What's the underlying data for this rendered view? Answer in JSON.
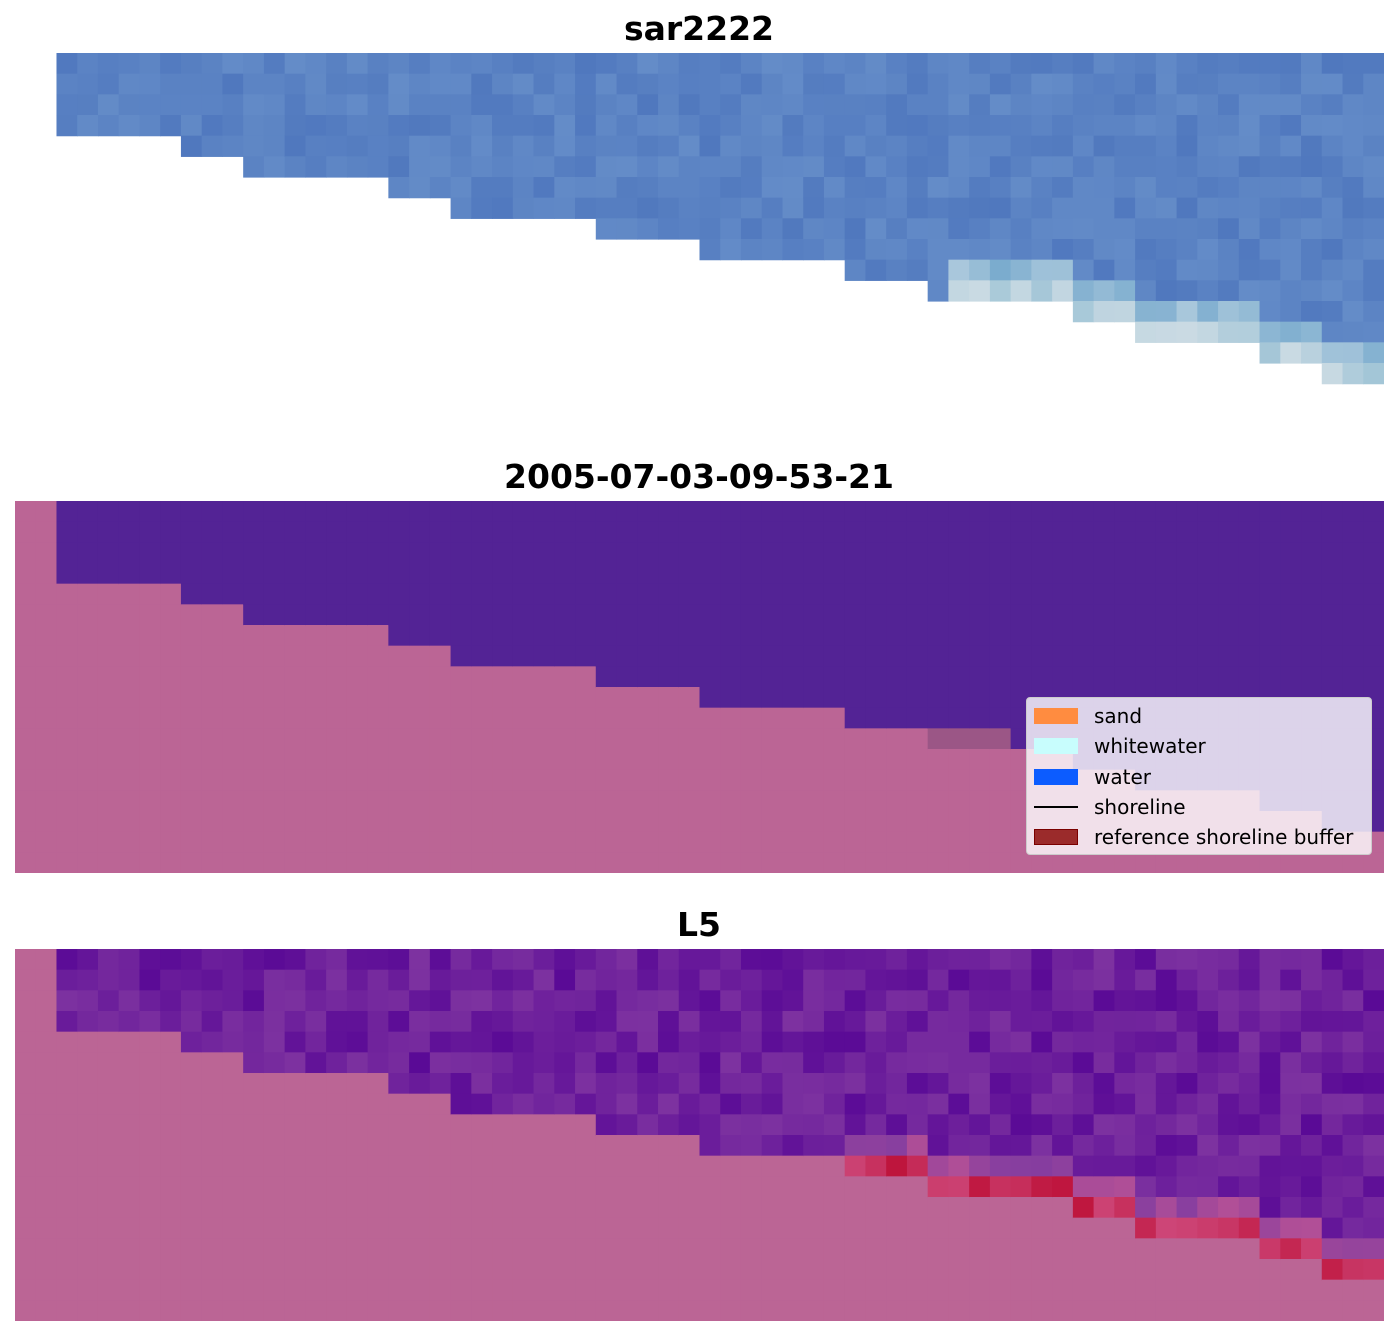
{
  "panels": [
    {
      "title": "sar2222"
    },
    {
      "title": "2005-07-03-09-53-21"
    },
    {
      "title": "L5"
    }
  ],
  "legend": {
    "items": [
      {
        "label": "sand",
        "kind": "patch",
        "color": "#ff8c40",
        "edge": "#ff8c40"
      },
      {
        "label": "whitewater",
        "kind": "patch",
        "color": "#c8fdfd",
        "edge": "#c8fdfd"
      },
      {
        "label": "water",
        "kind": "patch",
        "color": "#0c5cff",
        "edge": "#0c5cff"
      },
      {
        "label": "shoreline",
        "kind": "line",
        "color": "#000000"
      },
      {
        "label": "reference shoreline buffer",
        "kind": "patch",
        "color": "#9b2b2b",
        "edge": "#7a0000"
      }
    ]
  },
  "chart_data": {
    "type": "heatmap",
    "colors": {
      "land": "#bb6595",
      "water_class": "#532395",
      "buffer_overlap": "#9b5686"
    }
  }
}
